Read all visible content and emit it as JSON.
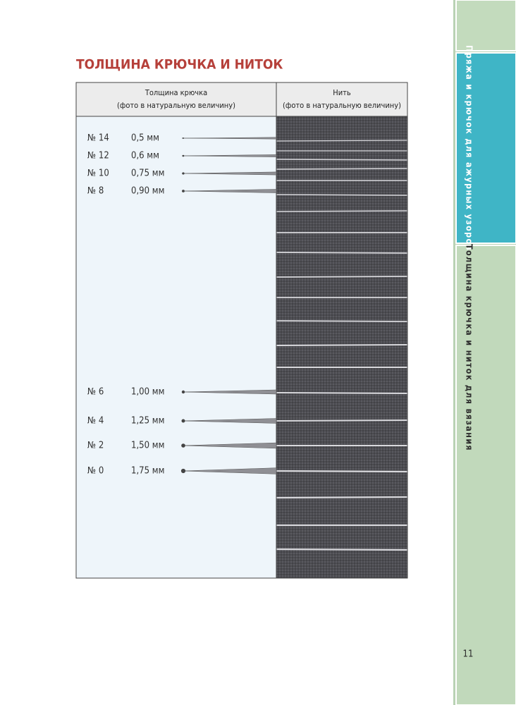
{
  "header": {
    "title": "ТОЛЩИНА КРЮЧКА И НИТОК"
  },
  "table": {
    "columns": [
      {
        "title": "Толщина крючка",
        "subtitle": "(фото в натуральную величину)"
      },
      {
        "title": "Нить",
        "subtitle": "(фото в натуральную величину)"
      }
    ],
    "rows": [
      {
        "number": "№ 14",
        "size": "0,5 мм"
      },
      {
        "number": "№ 12",
        "size": "0,6 мм"
      },
      {
        "number": "№ 10",
        "size": "0,75 мм"
      },
      {
        "number": "№ 8",
        "size": "0,90 мм"
      },
      {
        "number": "№ 6",
        "size": "1,00 мм"
      },
      {
        "number": "№ 4",
        "size": "1,25 мм"
      },
      {
        "number": "№ 2",
        "size": "1,50 мм"
      },
      {
        "number": "№ 0",
        "size": "1,75 мм"
      }
    ]
  },
  "sidebar": {
    "tabs": [
      "Пряжа и крючок для ажурных узоров",
      "Толщина крючка и ниток для вязания"
    ],
    "page_number": "11"
  }
}
